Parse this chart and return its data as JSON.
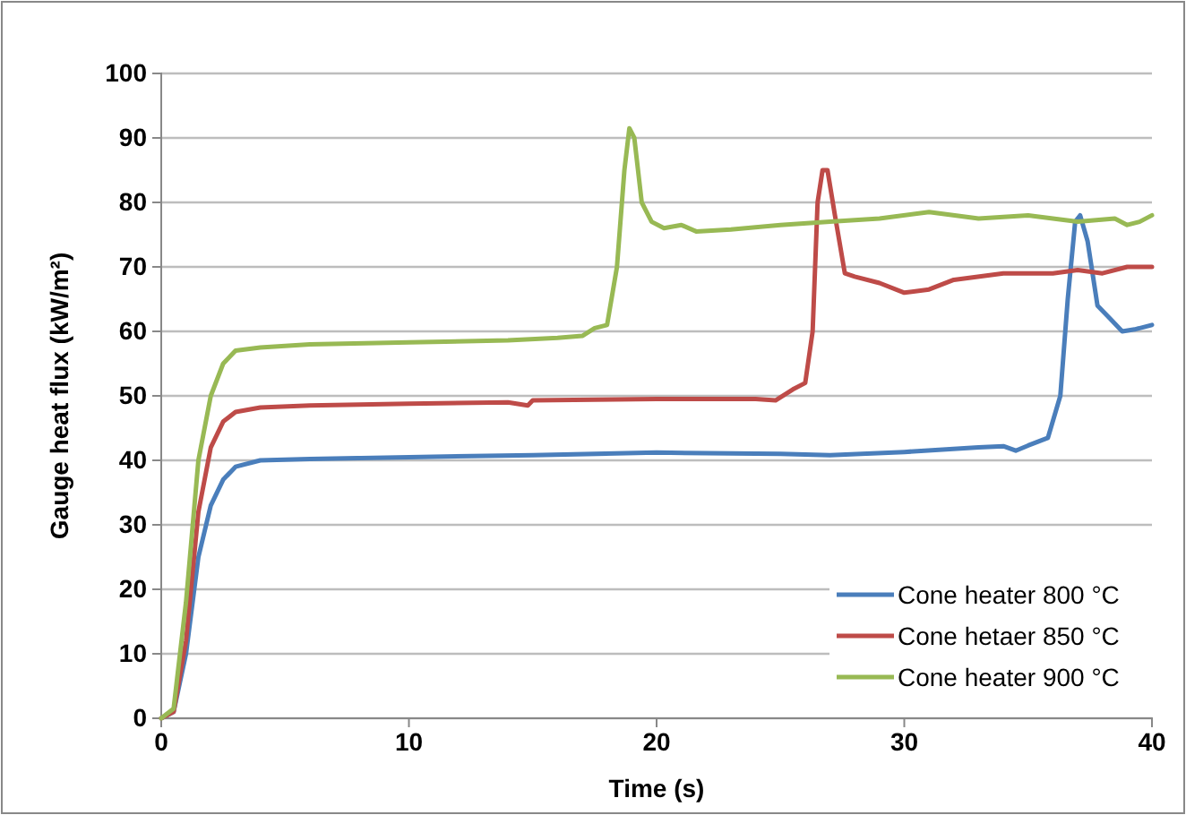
{
  "chart_data": {
    "type": "line",
    "xlabel": "Time (s)",
    "ylabel": "Gauge heat flux (kW/m²)",
    "xlim": [
      0,
      40
    ],
    "xticks": [
      0,
      10,
      20,
      30,
      40
    ],
    "ylim": [
      0,
      100
    ],
    "yticks": [
      0,
      10,
      20,
      30,
      40,
      50,
      60,
      70,
      80,
      90,
      100
    ],
    "grid": "y",
    "legend": "bottom right",
    "marker": "none",
    "line_style": "solid",
    "series": [
      {
        "name": "Cone heater 800 °C",
        "color": "#4a7ebb",
        "x": [
          0,
          0.5,
          1,
          1.5,
          2,
          2.5,
          3,
          4,
          6,
          10,
          15,
          20,
          25,
          27,
          30,
          33,
          34,
          34.5,
          35,
          35.8,
          36.3,
          36.6,
          36.9,
          37.1,
          37.4,
          37.8,
          38.3,
          38.8,
          39.3,
          40
        ],
        "values": [
          0,
          1,
          10,
          25,
          33,
          37,
          39,
          40,
          40.2,
          40.5,
          40.8,
          41.2,
          41,
          40.8,
          41.3,
          42,
          42.2,
          41.5,
          42.3,
          43.5,
          50,
          65,
          77,
          78,
          74,
          64,
          62,
          60,
          60.3,
          61
        ]
      },
      {
        "name": "Cone hetaer 850 °C",
        "color": "#be4b48",
        "x": [
          0,
          0.5,
          1,
          1.5,
          2,
          2.5,
          3,
          4,
          6,
          10,
          14,
          14.8,
          15,
          20,
          24,
          24.8,
          25.5,
          26,
          26.3,
          26.5,
          26.7,
          26.9,
          27.2,
          27.6,
          28,
          29,
          30,
          31,
          32,
          34,
          36,
          37,
          38,
          39,
          40
        ],
        "values": [
          0,
          1,
          12,
          32,
          42,
          46,
          47.5,
          48.2,
          48.5,
          48.8,
          49,
          48.5,
          49.3,
          49.5,
          49.5,
          49.3,
          51,
          52,
          60,
          80,
          85,
          85,
          78,
          69,
          68.5,
          67.5,
          66,
          66.5,
          68,
          69,
          69,
          69.5,
          69,
          70,
          70
        ]
      },
      {
        "name": "Cone heater 900 °C",
        "color": "#98b954",
        "x": [
          0,
          0.5,
          1,
          1.5,
          2,
          2.5,
          3,
          4,
          6,
          10,
          14,
          16,
          17,
          17.5,
          18,
          18.4,
          18.7,
          18.9,
          19.1,
          19.4,
          19.8,
          20.3,
          21,
          21.6,
          23,
          25,
          27,
          29,
          31,
          33,
          35,
          37,
          38.5,
          39,
          39.5,
          40
        ],
        "values": [
          0,
          1.5,
          18,
          40,
          50,
          55,
          57,
          57.5,
          58,
          58.3,
          58.6,
          59,
          59.3,
          60.5,
          61,
          70,
          85,
          91.5,
          90,
          80,
          77,
          76,
          76.5,
          75.5,
          75.8,
          76.5,
          77,
          77.5,
          78.5,
          77.5,
          78,
          77,
          77.5,
          76.5,
          77,
          78
        ]
      }
    ]
  }
}
